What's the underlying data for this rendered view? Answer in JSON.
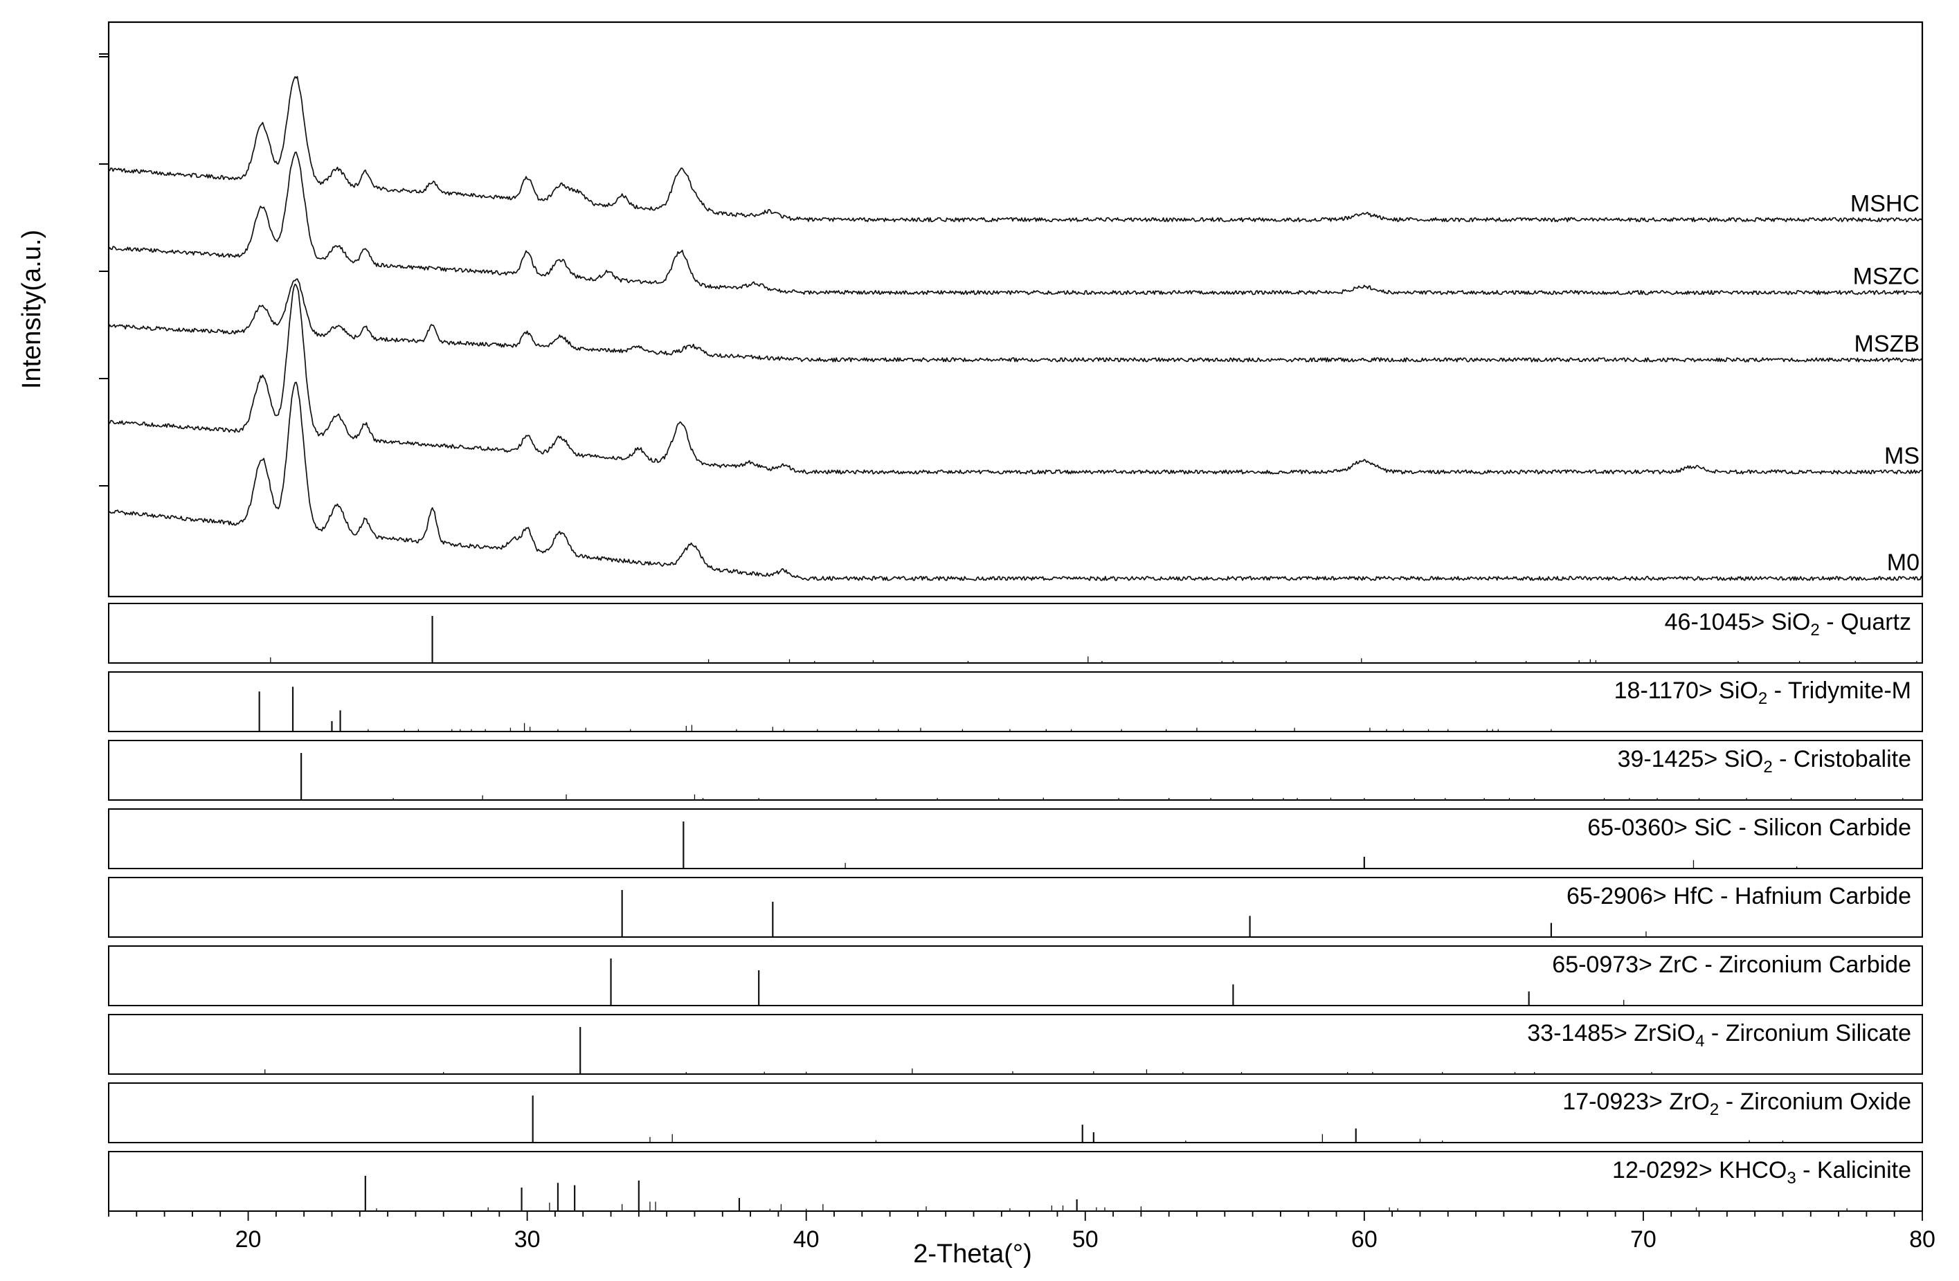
{
  "chart_data": {
    "type": "line",
    "xlabel": "2-Theta(°)",
    "ylabel": "Intensity(a.u.)",
    "xlim": [
      15,
      80
    ],
    "xticks": [
      20,
      30,
      40,
      50,
      60,
      70,
      80
    ],
    "x_minor_step": 1,
    "y_unit": "arbitrary",
    "series": [
      {
        "name": "MSHC",
        "baseline": 0.66,
        "decay": {
          "start": 15,
          "end": 40,
          "amount": 0.09
        },
        "peaks": [
          [
            20.5,
            0.1,
            0.28
          ],
          [
            21.7,
            0.19,
            0.3
          ],
          [
            23.2,
            0.03,
            0.25
          ],
          [
            24.2,
            0.03,
            0.15
          ],
          [
            26.6,
            0.02,
            0.15
          ],
          [
            30.0,
            0.04,
            0.18
          ],
          [
            31.2,
            0.03,
            0.25
          ],
          [
            31.8,
            0.02,
            0.25
          ],
          [
            33.4,
            0.02,
            0.18
          ],
          [
            35.5,
            0.07,
            0.28
          ],
          [
            36.0,
            0.02,
            0.3
          ],
          [
            38.7,
            0.01,
            0.3
          ],
          [
            60.0,
            0.01,
            0.4
          ]
        ]
      },
      {
        "name": "MSZC",
        "baseline": 0.53,
        "decay": {
          "start": 15,
          "end": 40,
          "amount": 0.08
        },
        "peaks": [
          [
            20.5,
            0.09,
            0.28
          ],
          [
            21.7,
            0.19,
            0.3
          ],
          [
            23.2,
            0.03,
            0.25
          ],
          [
            24.2,
            0.03,
            0.15
          ],
          [
            30.0,
            0.04,
            0.18
          ],
          [
            31.2,
            0.03,
            0.25
          ],
          [
            32.9,
            0.015,
            0.18
          ],
          [
            35.5,
            0.06,
            0.28
          ],
          [
            38.2,
            0.01,
            0.3
          ],
          [
            60.0,
            0.01,
            0.4
          ]
        ]
      },
      {
        "name": "MSZB",
        "baseline": 0.41,
        "decay": {
          "start": 15,
          "end": 40,
          "amount": 0.06
        },
        "peaks": [
          [
            20.5,
            0.05,
            0.28
          ],
          [
            21.7,
            0.1,
            0.3
          ],
          [
            23.2,
            0.02,
            0.25
          ],
          [
            24.2,
            0.02,
            0.15
          ],
          [
            26.6,
            0.03,
            0.15
          ],
          [
            30.0,
            0.025,
            0.18
          ],
          [
            31.2,
            0.02,
            0.25
          ],
          [
            34.0,
            0.01,
            0.2
          ],
          [
            35.9,
            0.015,
            0.3
          ]
        ]
      },
      {
        "name": "MS",
        "baseline": 0.21,
        "decay": {
          "start": 15,
          "end": 40,
          "amount": 0.09
        },
        "peaks": [
          [
            20.5,
            0.1,
            0.28
          ],
          [
            21.7,
            0.27,
            0.28
          ],
          [
            23.2,
            0.04,
            0.25
          ],
          [
            24.2,
            0.03,
            0.15
          ],
          [
            30.0,
            0.03,
            0.18
          ],
          [
            31.2,
            0.03,
            0.25
          ],
          [
            34.0,
            0.02,
            0.2
          ],
          [
            35.5,
            0.07,
            0.28
          ],
          [
            38.0,
            0.01,
            0.25
          ],
          [
            39.2,
            0.01,
            0.2
          ],
          [
            60.0,
            0.02,
            0.4
          ],
          [
            71.8,
            0.01,
            0.3
          ]
        ]
      },
      {
        "name": "M0",
        "baseline": 0.02,
        "decay": {
          "start": 15,
          "end": 40,
          "amount": 0.12
        },
        "peaks": [
          [
            20.5,
            0.12,
            0.28
          ],
          [
            21.7,
            0.26,
            0.28
          ],
          [
            23.2,
            0.05,
            0.25
          ],
          [
            24.2,
            0.03,
            0.15
          ],
          [
            26.6,
            0.06,
            0.15
          ],
          [
            29.5,
            0.02,
            0.2
          ],
          [
            30.0,
            0.04,
            0.18
          ],
          [
            31.2,
            0.04,
            0.25
          ],
          [
            35.9,
            0.04,
            0.3
          ],
          [
            39.2,
            0.01,
            0.2
          ]
        ]
      }
    ],
    "reference_panels": [
      {
        "pdf": "46-1045>",
        "formula": "SiO",
        "sub": "2",
        "name": " - Quartz",
        "lines": [
          [
            20.8,
            0.12
          ],
          [
            26.6,
            1.0
          ],
          [
            36.5,
            0.08
          ],
          [
            39.4,
            0.08
          ],
          [
            40.3,
            0.04
          ],
          [
            42.4,
            0.06
          ],
          [
            45.8,
            0.04
          ],
          [
            50.1,
            0.14
          ],
          [
            50.6,
            0.02
          ],
          [
            54.9,
            0.04
          ],
          [
            55.3,
            0.02
          ],
          [
            57.2,
            0.02
          ],
          [
            59.9,
            0.1
          ],
          [
            64.0,
            0.02
          ],
          [
            65.8,
            0.02
          ],
          [
            67.7,
            0.06
          ],
          [
            68.1,
            0.08
          ],
          [
            68.3,
            0.06
          ],
          [
            73.4,
            0.02
          ],
          [
            75.6,
            0.02
          ],
          [
            77.6,
            0.02
          ],
          [
            79.8,
            0.02
          ]
        ]
      },
      {
        "pdf": "18-1170>",
        "formula": "SiO",
        "sub": "2",
        "name": " - Tridymite-M",
        "lines": [
          [
            20.4,
            0.85
          ],
          [
            21.6,
            0.95
          ],
          [
            23.0,
            0.22
          ],
          [
            23.3,
            0.45
          ],
          [
            24.3,
            0.05
          ],
          [
            25.6,
            0.05
          ],
          [
            26.1,
            0.05
          ],
          [
            27.3,
            0.05
          ],
          [
            27.6,
            0.05
          ],
          [
            28.0,
            0.05
          ],
          [
            28.5,
            0.05
          ],
          [
            29.4,
            0.08
          ],
          [
            29.9,
            0.18
          ],
          [
            30.1,
            0.1
          ],
          [
            31.1,
            0.05
          ],
          [
            32.1,
            0.08
          ],
          [
            33.7,
            0.05
          ],
          [
            35.7,
            0.12
          ],
          [
            35.9,
            0.14
          ],
          [
            37.5,
            0.05
          ],
          [
            38.8,
            0.1
          ],
          [
            39.2,
            0.05
          ],
          [
            40.4,
            0.05
          ],
          [
            41.8,
            0.05
          ],
          [
            42.6,
            0.05
          ],
          [
            43.3,
            0.05
          ],
          [
            44.1,
            0.08
          ],
          [
            45.6,
            0.05
          ],
          [
            47.3,
            0.05
          ],
          [
            48.6,
            0.05
          ],
          [
            49.5,
            0.05
          ],
          [
            51.3,
            0.05
          ],
          [
            52.9,
            0.05
          ],
          [
            54.0,
            0.08
          ],
          [
            56.1,
            0.05
          ],
          [
            57.5,
            0.08
          ],
          [
            60.2,
            0.08
          ],
          [
            60.8,
            0.05
          ],
          [
            61.4,
            0.05
          ],
          [
            62.3,
            0.05
          ],
          [
            63.0,
            0.05
          ],
          [
            64.4,
            0.05
          ],
          [
            64.6,
            0.05
          ],
          [
            64.8,
            0.05
          ],
          [
            66.7,
            0.05
          ]
        ]
      },
      {
        "pdf": "39-1425>",
        "formula": "SiO",
        "sub": "2",
        "name": " - Cristobalite",
        "lines": [
          [
            21.9,
            1.0
          ],
          [
            25.2,
            0.04
          ],
          [
            28.4,
            0.1
          ],
          [
            31.4,
            0.12
          ],
          [
            36.0,
            0.12
          ],
          [
            36.3,
            0.04
          ],
          [
            38.3,
            0.03
          ],
          [
            42.5,
            0.03
          ],
          [
            44.7,
            0.03
          ],
          [
            46.9,
            0.04
          ],
          [
            48.5,
            0.05
          ],
          [
            51.2,
            0.03
          ],
          [
            53.0,
            0.03
          ],
          [
            54.5,
            0.03
          ],
          [
            56.0,
            0.04
          ],
          [
            57.1,
            0.04
          ],
          [
            57.6,
            0.03
          ],
          [
            58.8,
            0.05
          ],
          [
            60.0,
            0.03
          ],
          [
            61.8,
            0.03
          ],
          [
            62.9,
            0.03
          ],
          [
            64.3,
            0.03
          ],
          [
            65.2,
            0.03
          ],
          [
            66.1,
            0.03
          ],
          [
            68.6,
            0.04
          ],
          [
            69.5,
            0.04
          ],
          [
            70.5,
            0.03
          ],
          [
            72.0,
            0.03
          ],
          [
            73.7,
            0.03
          ],
          [
            75.3,
            0.03
          ],
          [
            77.6,
            0.03
          ],
          [
            79.3,
            0.03
          ]
        ]
      },
      {
        "pdf": "65-0360>",
        "formula": "SiC",
        "sub": "",
        "name": " - Silicon Carbide",
        "lines": [
          [
            35.6,
            1.0
          ],
          [
            41.4,
            0.12
          ],
          [
            60.0,
            0.25
          ],
          [
            71.8,
            0.18
          ],
          [
            75.5,
            0.04
          ]
        ]
      },
      {
        "pdf": "65-2906>",
        "formula": "HfC",
        "sub": "",
        "name": " - Hafnium Carbide",
        "lines": [
          [
            33.4,
            1.0
          ],
          [
            38.8,
            0.75
          ],
          [
            55.9,
            0.45
          ],
          [
            66.7,
            0.3
          ],
          [
            70.1,
            0.12
          ]
        ]
      },
      {
        "pdf": "65-0973>",
        "formula": "ZrC",
        "sub": "",
        "name": " - Zirconium Carbide",
        "lines": [
          [
            33.0,
            1.0
          ],
          [
            38.3,
            0.75
          ],
          [
            55.3,
            0.45
          ],
          [
            65.9,
            0.3
          ],
          [
            69.3,
            0.12
          ]
        ]
      },
      {
        "pdf": "33-1485>",
        "formula": "ZrSiO",
        "sub": "4",
        "name": " - Zirconium Silicate",
        "lines": [
          [
            20.6,
            0.1
          ],
          [
            27.0,
            0.04
          ],
          [
            31.9,
            1.0
          ],
          [
            35.7,
            0.04
          ],
          [
            38.5,
            0.05
          ],
          [
            40.0,
            0.05
          ],
          [
            43.8,
            0.12
          ],
          [
            47.4,
            0.06
          ],
          [
            50.3,
            0.06
          ],
          [
            52.2,
            0.1
          ],
          [
            53.5,
            0.04
          ],
          [
            55.6,
            0.04
          ],
          [
            59.4,
            0.04
          ],
          [
            60.3,
            0.04
          ],
          [
            62.8,
            0.04
          ],
          [
            65.4,
            0.04
          ],
          [
            66.1,
            0.04
          ],
          [
            70.3,
            0.04
          ]
        ]
      },
      {
        "pdf": "17-0923>",
        "formula": "ZrO",
        "sub": "2",
        "name": " - Zirconium Oxide",
        "lines": [
          [
            30.2,
            1.0
          ],
          [
            34.4,
            0.12
          ],
          [
            35.2,
            0.18
          ],
          [
            42.5,
            0.05
          ],
          [
            49.9,
            0.38
          ],
          [
            50.3,
            0.22
          ],
          [
            53.6,
            0.04
          ],
          [
            58.5,
            0.18
          ],
          [
            59.7,
            0.3
          ],
          [
            62.0,
            0.08
          ],
          [
            62.8,
            0.04
          ],
          [
            73.8,
            0.05
          ],
          [
            75.0,
            0.04
          ]
        ]
      },
      {
        "pdf": "12-0292>",
        "formula": "KHCO",
        "sub": "3",
        "name": " - Kalicinite",
        "lines": [
          [
            24.2,
            0.75
          ],
          [
            24.6,
            0.06
          ],
          [
            28.6,
            0.08
          ],
          [
            29.8,
            0.5
          ],
          [
            30.8,
            0.18
          ],
          [
            31.1,
            0.6
          ],
          [
            31.7,
            0.55
          ],
          [
            33.4,
            0.15
          ],
          [
            34.0,
            0.65
          ],
          [
            34.4,
            0.2
          ],
          [
            34.6,
            0.2
          ],
          [
            37.6,
            0.28
          ],
          [
            38.7,
            0.05
          ],
          [
            39.1,
            0.15
          ],
          [
            40.0,
            0.05
          ],
          [
            40.6,
            0.15
          ],
          [
            44.3,
            0.1
          ],
          [
            47.3,
            0.06
          ],
          [
            48.8,
            0.12
          ],
          [
            49.2,
            0.12
          ],
          [
            49.7,
            0.25
          ],
          [
            50.4,
            0.08
          ],
          [
            50.7,
            0.08
          ],
          [
            52.0,
            0.1
          ],
          [
            60.9,
            0.08
          ],
          [
            61.2,
            0.06
          ],
          [
            71.9,
            0.08
          ],
          [
            77.3,
            0.06
          ]
        ]
      }
    ]
  }
}
